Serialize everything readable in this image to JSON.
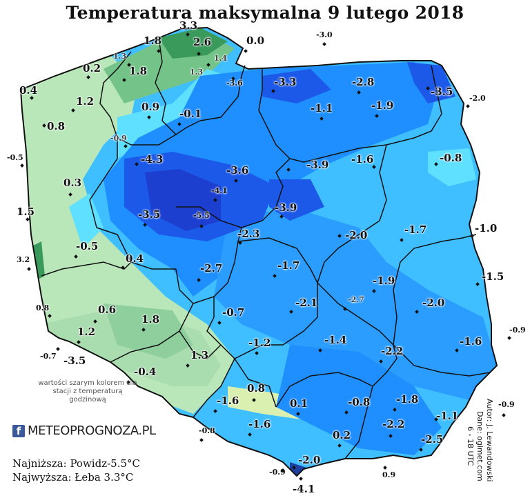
{
  "title": "Temperatura maksymalna 9 lutego 2018",
  "colors": {
    "warm_green": "#b9e7b9",
    "green": "#74c48a",
    "dark_green": "#3a9a5c",
    "cyan": "#5fe0ff",
    "light_blue": "#3fbfff",
    "blue": "#1f8fff",
    "dark_blue": "#1c59e8",
    "deep_blue": "#1d3fd0"
  },
  "stations": [
    {
      "value": "3.3",
      "size": "big"
    },
    {
      "value": "1.8",
      "size": "big"
    },
    {
      "value": "2.6",
      "size": "big"
    },
    {
      "value": "0.0",
      "size": "big"
    },
    {
      "value": "-3.0",
      "size": "small"
    },
    {
      "value": "1.3",
      "size": "small",
      "grey": true
    },
    {
      "value": "1.4",
      "size": "small",
      "grey": true
    },
    {
      "value": "1.3",
      "size": "small",
      "grey": true
    },
    {
      "value": "0.2",
      "size": "big"
    },
    {
      "value": "1.8",
      "size": "big"
    },
    {
      "value": "-3.6",
      "size": "small"
    },
    {
      "value": "-3.3",
      "size": "big"
    },
    {
      "value": "-2.8",
      "size": "big"
    },
    {
      "value": "-3.5",
      "size": "big"
    },
    {
      "value": "0.4",
      "size": "big"
    },
    {
      "value": "-2.0",
      "size": "small"
    },
    {
      "value": "1.2",
      "size": "big"
    },
    {
      "value": "0.9",
      "size": "big"
    },
    {
      "value": "-0.1",
      "size": "big"
    },
    {
      "value": "-1.1",
      "size": "big"
    },
    {
      "value": "-1.9",
      "size": "big"
    },
    {
      "value": "0.8",
      "size": "big"
    },
    {
      "value": "-0.9",
      "size": "small",
      "grey": true
    },
    {
      "value": "-0.5",
      "size": "small"
    },
    {
      "value": "-4.3",
      "size": "big"
    },
    {
      "value": "-3.6",
      "size": "big"
    },
    {
      "value": "-3.9",
      "size": "big"
    },
    {
      "value": "-1.6",
      "size": "big"
    },
    {
      "value": "-0.8",
      "size": "big"
    },
    {
      "value": "0.3",
      "size": "big"
    },
    {
      "value": "-4.1",
      "size": "small"
    },
    {
      "value": "1.5",
      "size": "big"
    },
    {
      "value": "-3.5",
      "size": "big"
    },
    {
      "value": "-5.5",
      "size": "small"
    },
    {
      "value": "-3.9",
      "size": "big"
    },
    {
      "value": "-2.3",
      "size": "big"
    },
    {
      "value": "-2.0",
      "size": "big"
    },
    {
      "value": "-1.7",
      "size": "big"
    },
    {
      "value": "-1.0",
      "size": "big"
    },
    {
      "value": "-0.5",
      "size": "big"
    },
    {
      "value": "3.2",
      "size": "small"
    },
    {
      "value": "0.4",
      "size": "big"
    },
    {
      "value": "-2.7",
      "size": "big"
    },
    {
      "value": "-1.7",
      "size": "big"
    },
    {
      "value": "-1.9",
      "size": "big"
    },
    {
      "value": "-1.5",
      "size": "big"
    },
    {
      "value": "0.8",
      "size": "small"
    },
    {
      "value": "0.6",
      "size": "big"
    },
    {
      "value": "1.8",
      "size": "big"
    },
    {
      "value": "-0.7",
      "size": "big"
    },
    {
      "value": "-2.1",
      "size": "big"
    },
    {
      "value": "-2.7",
      "size": "small",
      "grey": true
    },
    {
      "value": "-2.0",
      "size": "big"
    },
    {
      "value": "-0.9",
      "size": "small"
    },
    {
      "value": "1.2",
      "size": "big"
    },
    {
      "value": "-1.4",
      "size": "big"
    },
    {
      "value": "-1.6",
      "size": "big"
    },
    {
      "value": "-0.7",
      "size": "small"
    },
    {
      "value": "-3.5",
      "size": "big"
    },
    {
      "value": "1.3",
      "size": "big"
    },
    {
      "value": "-1.2",
      "size": "big"
    },
    {
      "value": "-2.2",
      "size": "big"
    },
    {
      "value": "-0.4",
      "size": "big"
    },
    {
      "value": "0.8",
      "size": "big"
    },
    {
      "value": "-1.6",
      "size": "big"
    },
    {
      "value": "0.1",
      "size": "big"
    },
    {
      "value": "-0.8",
      "size": "big"
    },
    {
      "value": "-1.8",
      "size": "big"
    },
    {
      "value": "-0.9",
      "size": "small"
    },
    {
      "value": "-1.6",
      "size": "big"
    },
    {
      "value": "-2.2",
      "size": "big"
    },
    {
      "value": "-1.1",
      "size": "big"
    },
    {
      "value": "-0.8",
      "size": "small"
    },
    {
      "value": "0.2",
      "size": "big"
    },
    {
      "value": "-2.5",
      "size": "big"
    },
    {
      "value": "-2.0",
      "size": "big"
    },
    {
      "value": "-0.9",
      "size": "small"
    },
    {
      "value": "0.9",
      "size": "small"
    },
    {
      "value": "-4.1",
      "size": "big"
    }
  ],
  "note": "wartości szarym kolorem dla stacji z temperaturą godzinową",
  "logo": {
    "fb": "f",
    "text": "METEOPROGNOZA.PL"
  },
  "summary": {
    "lowest": "Najniższa: Powidz-5.5°C",
    "highest": "Najwyższa: Łeba 3.3°C"
  },
  "credits": {
    "author": "Autor: J. Lewandowski",
    "data": "Dane: ogimet.com",
    "hours": "6 - 18 UTC"
  }
}
